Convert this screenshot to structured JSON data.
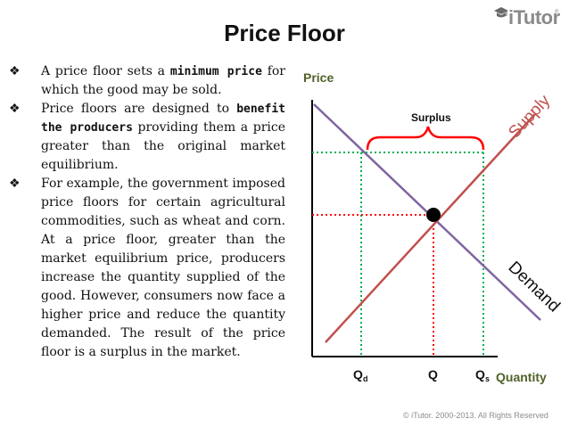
{
  "slide": {
    "title": "Price Floor",
    "logo_text": "iTutor",
    "logo_reg": "®",
    "footer": "© iTutor. 2000-2013. All Rights Reserved"
  },
  "bullets": [
    {
      "segments": [
        {
          "text": "A price floor sets a ",
          "strong": false
        },
        {
          "text": "minimum price",
          "strong": true
        },
        {
          "text": " for which the good may be sold.",
          "strong": false
        }
      ]
    },
    {
      "segments": [
        {
          "text": "Price floors are designed to ",
          "strong": false
        },
        {
          "text": "benefit the producers",
          "strong": true
        },
        {
          "text": " providing them a price greater than the original market equilibrium.",
          "strong": false
        }
      ]
    },
    {
      "segments": [
        {
          "text": "For example, the government imposed price floors for certain agricultural commodities, such as wheat and corn. At a price floor, greater than the market equilibrium price, producers increase the quantity supplied of the good. However, consumers now face a higher price and reduce the quantity demanded. The result of the price floor is a surplus in the market.",
          "strong": false
        }
      ]
    }
  ],
  "diagram": {
    "y_axis_label": "Price",
    "x_axis_label": "Quantity",
    "supply_label": "Supply",
    "demand_label": "Demand",
    "surplus_label": "Surplus",
    "qd_label": "Q",
    "qd_sub": "d",
    "q_label": "Q",
    "qs_label": "Q",
    "qs_sub": "s",
    "colors": {
      "supply": "#c0504d",
      "demand": "#8064a2",
      "floor_line": "#00b050",
      "equilibrium_line": "#ff0000",
      "surplus_brace": "#ff0000",
      "axis_label": "#4f6228",
      "axis": "#000000"
    }
  }
}
